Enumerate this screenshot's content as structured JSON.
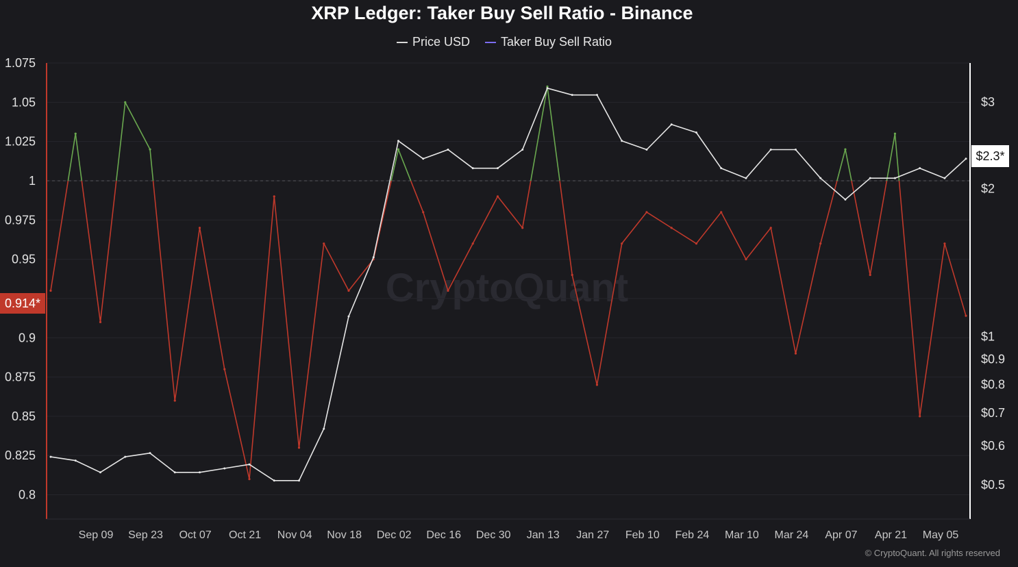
{
  "chart_data": {
    "type": "line",
    "title": "XRP Ledger: Taker Buy Sell Ratio - Binance",
    "legend": [
      {
        "label": "Price USD",
        "color": "#d9d9d9"
      },
      {
        "label": "Taker Buy Sell Ratio",
        "color": "#7c6cf0"
      }
    ],
    "legend_position": "top-center",
    "colors": {
      "background": "#1a1a1e",
      "price_line": "#e6e6e6",
      "ratio_above": "#6aa84f",
      "ratio_below": "#c0392b",
      "left_axis": "#c0392b",
      "right_axis": "#ffffff",
      "current_ratio_badge": "#c0392b",
      "current_price_badge": "#ffffff"
    },
    "x_axis": {
      "tick_labels": [
        "Sep 09",
        "Sep 23",
        "Oct 07",
        "Oct 21",
        "Nov 04",
        "Nov 18",
        "Dec 02",
        "Dec 16",
        "Dec 30",
        "Jan 13",
        "Jan 27",
        "Feb 10",
        "Feb 24",
        "Mar 10",
        "Mar 24",
        "Apr 07",
        "Apr 21",
        "May 05"
      ],
      "range": [
        "2024-08-27",
        "2025-05-12"
      ]
    },
    "left_axis": {
      "label": "",
      "range": [
        0.795,
        1.075
      ],
      "tick_labels": [
        "1.075",
        "1.05",
        "1.025",
        "1",
        "0.975",
        "0.95",
        "0.925",
        "0.9",
        "0.875",
        "0.85",
        "0.825",
        "0.8"
      ],
      "reference_line": 1,
      "current_value_label": "0.914*"
    },
    "right_axis": {
      "label": "",
      "scale": "log",
      "range": [
        0.46,
        3.6
      ],
      "tick_labels": [
        "$3",
        "$2",
        "$1",
        "$0.9",
        "$0.8",
        "$0.7",
        "$0.6",
        "$0.5"
      ],
      "current_value_label": "$2.3*"
    },
    "grid": true,
    "series": [
      {
        "name": "Taker Buy Sell Ratio",
        "axis": "left",
        "threshold": 1,
        "x": [
          "2024-08-27",
          "2024-09-03",
          "2024-09-10",
          "2024-09-17",
          "2024-09-24",
          "2024-10-01",
          "2024-10-08",
          "2024-10-15",
          "2024-10-22",
          "2024-10-29",
          "2024-11-05",
          "2024-11-12",
          "2024-11-19",
          "2024-11-26",
          "2024-12-03",
          "2024-12-10",
          "2024-12-17",
          "2024-12-24",
          "2024-12-31",
          "2025-01-07",
          "2025-01-14",
          "2025-01-21",
          "2025-01-28",
          "2025-02-04",
          "2025-02-11",
          "2025-02-18",
          "2025-02-25",
          "2025-03-04",
          "2025-03-11",
          "2025-03-18",
          "2025-03-25",
          "2025-04-01",
          "2025-04-08",
          "2025-04-15",
          "2025-04-22",
          "2025-04-29",
          "2025-05-06",
          "2025-05-12"
        ],
        "values": [
          0.93,
          1.03,
          0.91,
          1.05,
          1.02,
          0.86,
          0.97,
          0.88,
          0.81,
          0.99,
          0.83,
          0.96,
          0.93,
          0.95,
          1.02,
          0.98,
          0.93,
          0.96,
          0.99,
          0.97,
          1.06,
          0.94,
          0.87,
          0.96,
          0.98,
          0.97,
          0.96,
          0.98,
          0.95,
          0.97,
          0.89,
          0.96,
          1.02,
          0.94,
          1.03,
          0.85,
          0.96,
          0.914
        ]
      },
      {
        "name": "Price USD",
        "axis": "right",
        "x": [
          "2024-08-27",
          "2024-09-03",
          "2024-09-10",
          "2024-09-17",
          "2024-09-24",
          "2024-10-01",
          "2024-10-08",
          "2024-10-15",
          "2024-10-22",
          "2024-10-29",
          "2024-11-05",
          "2024-11-12",
          "2024-11-19",
          "2024-11-26",
          "2024-12-03",
          "2024-12-10",
          "2024-12-17",
          "2024-12-24",
          "2024-12-31",
          "2025-01-07",
          "2025-01-14",
          "2025-01-21",
          "2025-01-28",
          "2025-02-04",
          "2025-02-11",
          "2025-02-18",
          "2025-02-25",
          "2025-03-04",
          "2025-03-11",
          "2025-03-18",
          "2025-03-25",
          "2025-04-01",
          "2025-04-08",
          "2025-04-15",
          "2025-04-22",
          "2025-04-29",
          "2025-05-06",
          "2025-05-12"
        ],
        "values": [
          0.57,
          0.56,
          0.53,
          0.57,
          0.58,
          0.53,
          0.53,
          0.54,
          0.55,
          0.51,
          0.51,
          0.65,
          1.1,
          1.45,
          2.5,
          2.3,
          2.4,
          2.2,
          2.2,
          2.4,
          3.2,
          3.1,
          3.1,
          2.5,
          2.4,
          2.7,
          2.6,
          2.2,
          2.1,
          2.4,
          2.4,
          2.1,
          1.9,
          2.1,
          2.1,
          2.2,
          2.1,
          2.3
        ]
      }
    ],
    "watermark": "CryptoQuant",
    "copyright": "© CryptoQuant. All rights reserved"
  }
}
